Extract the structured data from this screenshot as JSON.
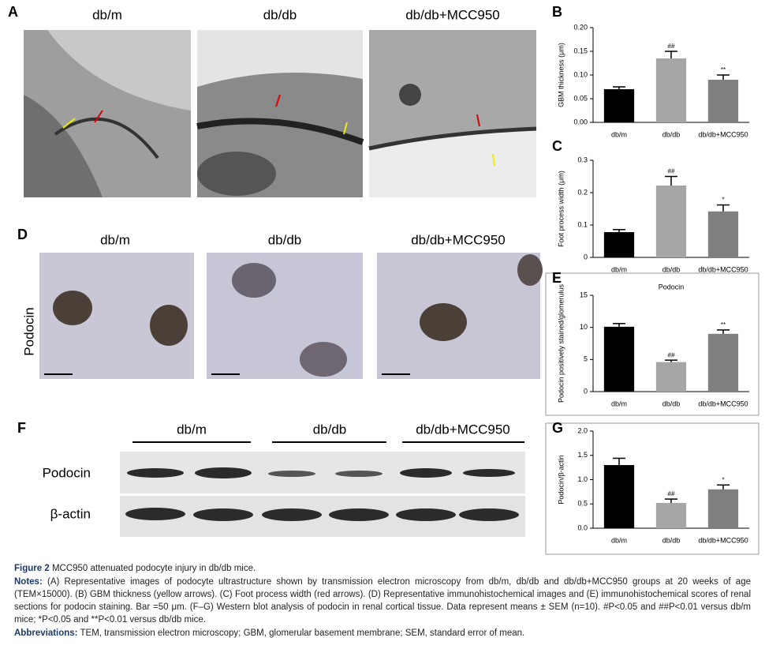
{
  "panel_labels": [
    "A",
    "B",
    "C",
    "D",
    "E",
    "F",
    "G"
  ],
  "panel_a": {
    "titles": [
      "db/m",
      "db/db",
      "db/db+MCC950"
    ]
  },
  "panel_d": {
    "titles": [
      "db/m",
      "db/db",
      "db/db+MCC950"
    ],
    "row_label": "Podocin"
  },
  "panel_f": {
    "titles": [
      "db/m",
      "db/db",
      "db/db+MCC950"
    ],
    "rows": [
      "Podocin",
      "β-actin"
    ]
  },
  "chart_data": [
    {
      "type": "bar",
      "ylabel": "GBM thickness (μm)",
      "categories": [
        "db/m",
        "db/db",
        "db/db+MCC950"
      ],
      "values": [
        0.07,
        0.135,
        0.09
      ],
      "errors": [
        0.005,
        0.015,
        0.01
      ],
      "annotations": [
        null,
        "##",
        "**"
      ],
      "colors": [
        "#000000",
        "#a6a6a6",
        "#7f7f7f"
      ],
      "ylim": [
        0,
        0.2
      ],
      "yticks": [
        {
          "value": 0,
          "label": "0.00"
        },
        0.05,
        {
          "value": 0.1,
          "label": "0.10"
        },
        0.15,
        {
          "value": 0.2,
          "label": "0.20"
        }
      ]
    },
    {
      "type": "bar",
      "ylabel": "Foot process width (μm)",
      "categories": [
        "db/m",
        "db/db",
        "db/db+MCC950"
      ],
      "values": [
        0.078,
        0.222,
        0.142
      ],
      "errors": [
        0.008,
        0.028,
        0.02
      ],
      "annotations": [
        null,
        "##",
        "*"
      ],
      "colors": [
        "#000000",
        "#a6a6a6",
        "#7f7f7f"
      ],
      "ylim": [
        0,
        0.3
      ],
      "yticks": [
        0,
        0.1,
        0.2,
        0.3
      ]
    },
    {
      "type": "bar",
      "title": "Podocin",
      "ylabel": "Podocin positively stained/glomerulus",
      "categories": [
        "db/m",
        "db/db",
        "db/db+MCC950"
      ],
      "values": [
        10.1,
        4.6,
        9.0
      ],
      "errors": [
        0.5,
        0.3,
        0.6
      ],
      "annotations": [
        null,
        "##",
        "**"
      ],
      "colors": [
        "#000000",
        "#a6a6a6",
        "#7f7f7f"
      ],
      "ylim": [
        0,
        15
      ],
      "yticks": [
        0,
        5,
        10,
        15
      ]
    },
    {
      "type": "bar",
      "ylabel": "Podocin/β-actin",
      "categories": [
        "db/m",
        "db/db",
        "db/db+MCC950"
      ],
      "values": [
        1.3,
        0.52,
        0.8
      ],
      "errors": [
        0.14,
        0.08,
        0.09
      ],
      "annotations": [
        null,
        "##",
        "*"
      ],
      "colors": [
        "#000000",
        "#a6a6a6",
        "#7f7f7f"
      ],
      "ylim": [
        0,
        2
      ],
      "yticks": [
        {
          "value": 0,
          "label": "0.0"
        },
        0.5,
        {
          "value": 1,
          "label": "1.0"
        },
        1.5,
        {
          "value": 2,
          "label": "2.0"
        }
      ]
    }
  ],
  "caption": {
    "figure": "Figure 2",
    "title": "MCC950 attenuated podocyte injury in db/db mice.",
    "notes_label": "Notes:",
    "notes": "(A) Representative images of podocyte ultrastructure shown by transmission electron microscopy from db/m, db/db and db/db+MCC950 groups at 20 weeks of age (TEM×15000). (B) GBM thickness (yellow arrows). (C) Foot process width (red arrows). (D) Representative immunohistochemical images and (E) immunohistochemical scores of renal sections for podocin staining. Bar =50 μm. (F–G) Western blot analysis of podocin in renal cortical tissue. Data represent means ± SEM (n=10). #P<0.05 and ##P<0.01 versus db/m mice; *P<0.05 and **P<0.01 versus db/db mice.",
    "abbrev_label": "Abbreviations:",
    "abbrev": "TEM, transmission electron microscopy; GBM, glomerular basement membrane; SEM, standard error of mean."
  }
}
